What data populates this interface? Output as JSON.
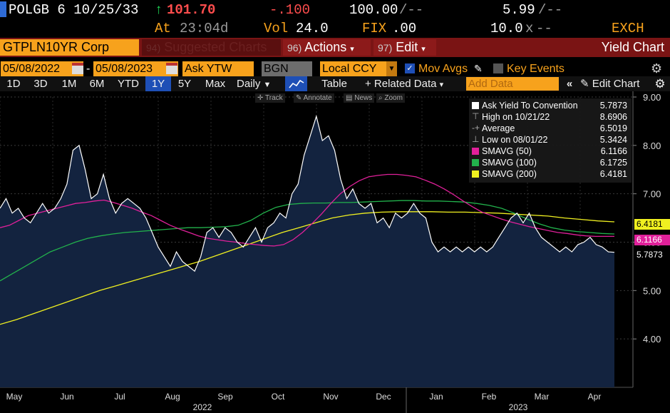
{
  "quote": {
    "ticker": "POLGB 6 10/25/33",
    "arrow": "↑",
    "price": "101.70",
    "change": "-.100",
    "bid": "100.00",
    "bid_sep": "/--",
    "yield": "5.99",
    "yield_sep": "/--",
    "at_label": "At",
    "time": "23:04d",
    "vol_label": "Vol",
    "vol": "24.0",
    "fix_label": "FIX",
    "fix": ".00",
    "size": "10.0",
    "size_x": "x",
    "size_sep": "--",
    "exch": "EXCH"
  },
  "function_bar": {
    "security": "GTPLN10YR Corp",
    "suggested_num": "94)",
    "suggested": "Suggested Charts",
    "actions_num": "96)",
    "actions": "Actions",
    "edit_num": "97)",
    "edit": "Edit",
    "title": "Yield Chart"
  },
  "options": {
    "start_date": "05/08/2022",
    "dash": "-",
    "end_date": "05/08/2023",
    "field": "Ask YTW",
    "source": "BGN",
    "currency": "Local CCY",
    "mov_avgs": "Mov Avgs",
    "key_events": "Key Events"
  },
  "periods": {
    "items": [
      "1D",
      "3D",
      "1M",
      "6M",
      "YTD",
      "1Y",
      "5Y",
      "Max"
    ],
    "active": "1Y",
    "frequency": "Daily",
    "table": "Table",
    "related": "+ Related Data",
    "add_data_placeholder": "Add Data",
    "edit_chart": "Edit Chart"
  },
  "tools": {
    "track": "Track",
    "annotate": "Annotate",
    "news": "News",
    "zoom": "Zoom"
  },
  "legend": [
    {
      "name": "Ask Yield To Convention",
      "value": "5.7873",
      "color": "#ffffff"
    },
    {
      "name": "High on 10/21/22",
      "value": "8.6906",
      "color": "none"
    },
    {
      "name": "Average",
      "value": "6.5019",
      "color": "none"
    },
    {
      "name": "Low on 08/01/22",
      "value": "5.3424",
      "color": "none"
    },
    {
      "name": "SMAVG (50)",
      "value": "6.1166",
      "color": "#e0209a"
    },
    {
      "name": "SMAVG (100)",
      "value": "6.1725",
      "color": "#22b24c"
    },
    {
      "name": "SMAVG (200)",
      "value": "6.4181",
      "color": "#f0f020"
    }
  ],
  "tags": [
    {
      "value": "6.4181",
      "bg": "#f0f020",
      "fg": "#000"
    },
    {
      "value": "6.1166",
      "bg": "#e0209a",
      "fg": "#fff"
    },
    {
      "value": "5.7873",
      "bg": "#000",
      "fg": "#fff"
    }
  ],
  "chart_data": {
    "type": "area",
    "ylim": [
      3.0,
      9.0
    ],
    "yticks": [
      "4.00",
      "5.00",
      "6.00",
      "7.00",
      "8.00",
      "9.00"
    ],
    "months": [
      "May",
      "Jun",
      "Jul",
      "Aug",
      "Sep",
      "Oct",
      "Nov",
      "Dec",
      "Jan",
      "Feb",
      "Mar",
      "Apr"
    ],
    "years": [
      "2022",
      "2023"
    ],
    "series": [
      {
        "name": "Ask Yield To Convention",
        "color": "#ffffff",
        "values": [
          6.7,
          6.9,
          6.6,
          6.7,
          6.5,
          6.4,
          6.6,
          6.8,
          6.6,
          6.7,
          6.9,
          7.2,
          7.9,
          8.0,
          7.5,
          6.9,
          7.0,
          7.4,
          6.9,
          6.6,
          6.8,
          6.9,
          6.8,
          6.7,
          6.5,
          6.2,
          5.9,
          5.7,
          5.5,
          5.8,
          5.6,
          5.5,
          5.4,
          5.7,
          6.2,
          6.3,
          6.1,
          6.3,
          6.2,
          6.0,
          5.9,
          6.1,
          6.3,
          6.0,
          6.3,
          6.4,
          6.6,
          6.5,
          7.0,
          7.2,
          7.8,
          8.2,
          8.6,
          8.1,
          8.2,
          7.9,
          7.3,
          6.9,
          7.1,
          6.8,
          6.7,
          6.8,
          6.4,
          6.5,
          6.3,
          6.6,
          6.5,
          6.6,
          6.8,
          6.6,
          6.5,
          6.0,
          5.8,
          5.9,
          5.8,
          5.9,
          5.8,
          5.9,
          5.8,
          5.9,
          5.8,
          5.9,
          6.1,
          6.3,
          6.5,
          6.6,
          6.4,
          6.6,
          6.3,
          6.1,
          6.0,
          5.9,
          5.8,
          5.9,
          5.8,
          5.95,
          6.0,
          6.1,
          5.95,
          5.9,
          5.8,
          5.79
        ]
      },
      {
        "name": "SMAVG (50)",
        "color": "#e0209a",
        "values": [
          6.3,
          6.35,
          6.45,
          6.55,
          6.6,
          6.65,
          6.7,
          6.75,
          6.8,
          6.82,
          6.85,
          6.87,
          6.82,
          6.76,
          6.7,
          6.62,
          6.55,
          6.45,
          6.35,
          6.27,
          6.2,
          6.13,
          6.08,
          6.05,
          6.02,
          6.0,
          5.97,
          5.95,
          5.93,
          5.92,
          5.95,
          6.05,
          6.2,
          6.38,
          6.58,
          6.8,
          7.0,
          7.15,
          7.27,
          7.35,
          7.38,
          7.4,
          7.4,
          7.38,
          7.35,
          7.28,
          7.2,
          7.1,
          6.98,
          6.85,
          6.73,
          6.62,
          6.55,
          6.48,
          6.42,
          6.37,
          6.32,
          6.28,
          6.24,
          6.2,
          6.18,
          6.15,
          6.13,
          6.12,
          6.12,
          6.12
        ]
      },
      {
        "name": "SMAVG (100)",
        "color": "#22b24c",
        "values": [
          5.2,
          5.35,
          5.5,
          5.65,
          5.8,
          5.9,
          6.0,
          6.08,
          6.13,
          6.17,
          6.2,
          6.22,
          6.24,
          6.26,
          6.28,
          6.3,
          6.3,
          6.31,
          6.32,
          6.35,
          6.45,
          6.6,
          6.72,
          6.78,
          6.8,
          6.81,
          6.81,
          6.82,
          6.82,
          6.83,
          6.84,
          6.85,
          6.86,
          6.86,
          6.85,
          6.85,
          6.84,
          6.83,
          6.8,
          6.76,
          6.7,
          6.6,
          6.48,
          6.38,
          6.3,
          6.25,
          6.22,
          6.2,
          6.18,
          6.17
        ]
      },
      {
        "name": "SMAVG (200)",
        "color": "#f0f020",
        "values": [
          4.3,
          4.4,
          4.52,
          4.64,
          4.76,
          4.88,
          5.0,
          5.1,
          5.2,
          5.3,
          5.4,
          5.5,
          5.6,
          5.72,
          5.84,
          5.96,
          6.08,
          6.2,
          6.3,
          6.4,
          6.5,
          6.56,
          6.6,
          6.62,
          6.63,
          6.63,
          6.63,
          6.62,
          6.62,
          6.61,
          6.6,
          6.58,
          6.56,
          6.54,
          6.5,
          6.47,
          6.44,
          6.42
        ]
      }
    ]
  }
}
